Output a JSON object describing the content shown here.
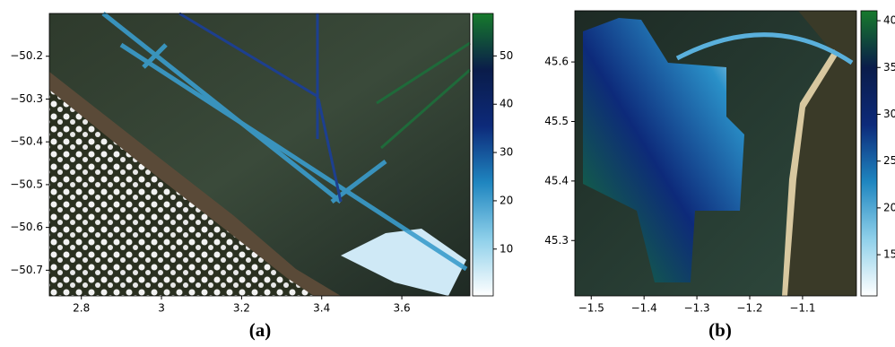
{
  "chart_data": [
    {
      "type": "map",
      "caption": "(a)",
      "xlim": [
        2.72,
        3.77
      ],
      "xticks": [
        2.8,
        3.0,
        3.2,
        3.4,
        3.6
      ],
      "ylim": [
        -50.76,
        -50.1
      ],
      "yticks": [
        {
          "value": -50.7,
          "label": "−50.7"
        },
        {
          "value": -50.6,
          "label": "−50.6"
        },
        {
          "value": -50.5,
          "label": "−50.5"
        },
        {
          "value": -50.4,
          "label": "−50.4"
        },
        {
          "value": -50.3,
          "label": "−50.3"
        },
        {
          "value": -50.2,
          "label": "−50.2"
        }
      ],
      "clim": [
        0.3,
        58.8
      ],
      "cticks": [
        10,
        20,
        30,
        40,
        50
      ],
      "colormap": [
        "#ffffff",
        "#8fd0ea",
        "#1f86c0",
        "#0d2a7a",
        "#0a1c4a",
        "#177a2c"
      ]
    },
    {
      "type": "map",
      "caption": "(b)",
      "xlim": [
        -1.531,
        -0.998
      ],
      "xticks": [
        {
          "value": -1.5,
          "label": "−1.5"
        },
        {
          "value": -1.4,
          "label": "−1.4"
        },
        {
          "value": -1.3,
          "label": "−1.3"
        },
        {
          "value": -1.2,
          "label": "−1.2"
        },
        {
          "value": -1.1,
          "label": "−1.1"
        }
      ],
      "ylim": [
        45.207,
        45.686
      ],
      "yticks": [
        45.3,
        45.4,
        45.5,
        45.6
      ],
      "clim": [
        10.6,
        41.06
      ],
      "cticks": [
        15,
        20,
        25,
        30,
        35,
        40
      ],
      "colormap": [
        "#ffffff",
        "#8fd0ea",
        "#1f86c0",
        "#0d2a7a",
        "#0a1c4a",
        "#177a2c"
      ]
    }
  ]
}
